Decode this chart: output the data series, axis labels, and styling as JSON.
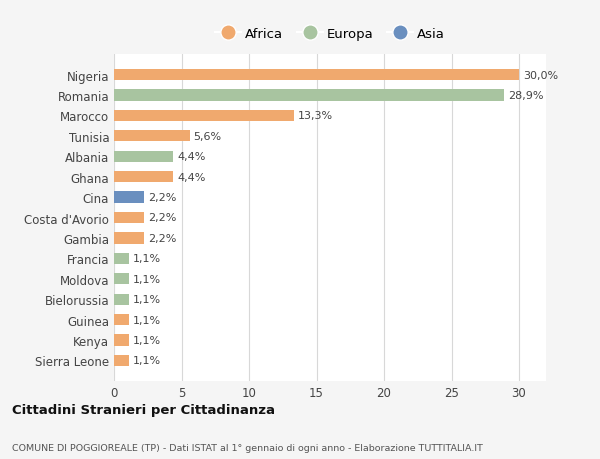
{
  "countries": [
    "Sierra Leone",
    "Kenya",
    "Guinea",
    "Bielorussia",
    "Moldova",
    "Francia",
    "Gambia",
    "Costa d'Avorio",
    "Cina",
    "Ghana",
    "Albania",
    "Tunisia",
    "Marocco",
    "Romania",
    "Nigeria"
  ],
  "values": [
    1.1,
    1.1,
    1.1,
    1.1,
    1.1,
    1.1,
    2.2,
    2.2,
    2.2,
    4.4,
    4.4,
    5.6,
    13.3,
    28.9,
    30.0
  ],
  "labels": [
    "1,1%",
    "1,1%",
    "1,1%",
    "1,1%",
    "1,1%",
    "1,1%",
    "2,2%",
    "2,2%",
    "2,2%",
    "4,4%",
    "4,4%",
    "5,6%",
    "13,3%",
    "28,9%",
    "30,0%"
  ],
  "colors": [
    "#f0a96e",
    "#f0a96e",
    "#f0a96e",
    "#a8c4a0",
    "#a8c4a0",
    "#a8c4a0",
    "#f0a96e",
    "#f0a96e",
    "#6a8fbf",
    "#f0a96e",
    "#a8c4a0",
    "#f0a96e",
    "#f0a96e",
    "#a8c4a0",
    "#f0a96e"
  ],
  "legend_labels": [
    "Africa",
    "Europa",
    "Asia"
  ],
  "legend_colors": [
    "#f0a96e",
    "#a8c4a0",
    "#6a8fbf"
  ],
  "title": "Cittadini Stranieri per Cittadinanza",
  "subtitle": "COMUNE DI POGGIOREALE (TP) - Dati ISTAT al 1° gennaio di ogni anno - Elaborazione TUTTITALIA.IT",
  "xlim": [
    0,
    32
  ],
  "xticks": [
    0,
    5,
    10,
    15,
    20,
    25,
    30
  ],
  "background_color": "#f5f5f5",
  "bar_background": "#ffffff",
  "grid_color": "#d8d8d8"
}
